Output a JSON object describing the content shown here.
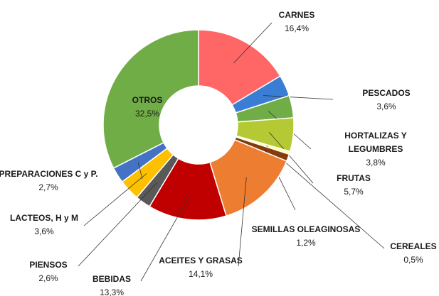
{
  "chart_data": {
    "type": "donut",
    "categories": [
      "CARNES",
      "PESCADOS",
      "HORTALIZAS Y LEGUMBRES",
      "FRUTAS",
      "CEREALES",
      "SEMILLAS OLEAGINOSAS",
      "ACEITES Y GRASAS",
      "BEBIDAS",
      "PIENSOS",
      "LACTEOS, H y M",
      "PREPARACIONES C y P.",
      "OTROS"
    ],
    "values": [
      16.4,
      3.6,
      3.8,
      5.7,
      0.5,
      1.2,
      14.1,
      13.3,
      2.6,
      3.6,
      2.7,
      32.5
    ],
    "value_labels": [
      "16,4%",
      "3,6%",
      "3,8%",
      "5,7%",
      "0,5%",
      "1,2%",
      "14,1%",
      "13,3%",
      "2,6%",
      "3,6%",
      "2,7%",
      "32,5%"
    ],
    "colors": [
      "#ff6666",
      "#3a7dd4",
      "#70ad47",
      "#b5c934",
      "#ffff99",
      "#843c0c",
      "#ed7d31",
      "#c00000",
      "#595959",
      "#ffc000",
      "#4472c4",
      "#70ad47"
    ]
  }
}
